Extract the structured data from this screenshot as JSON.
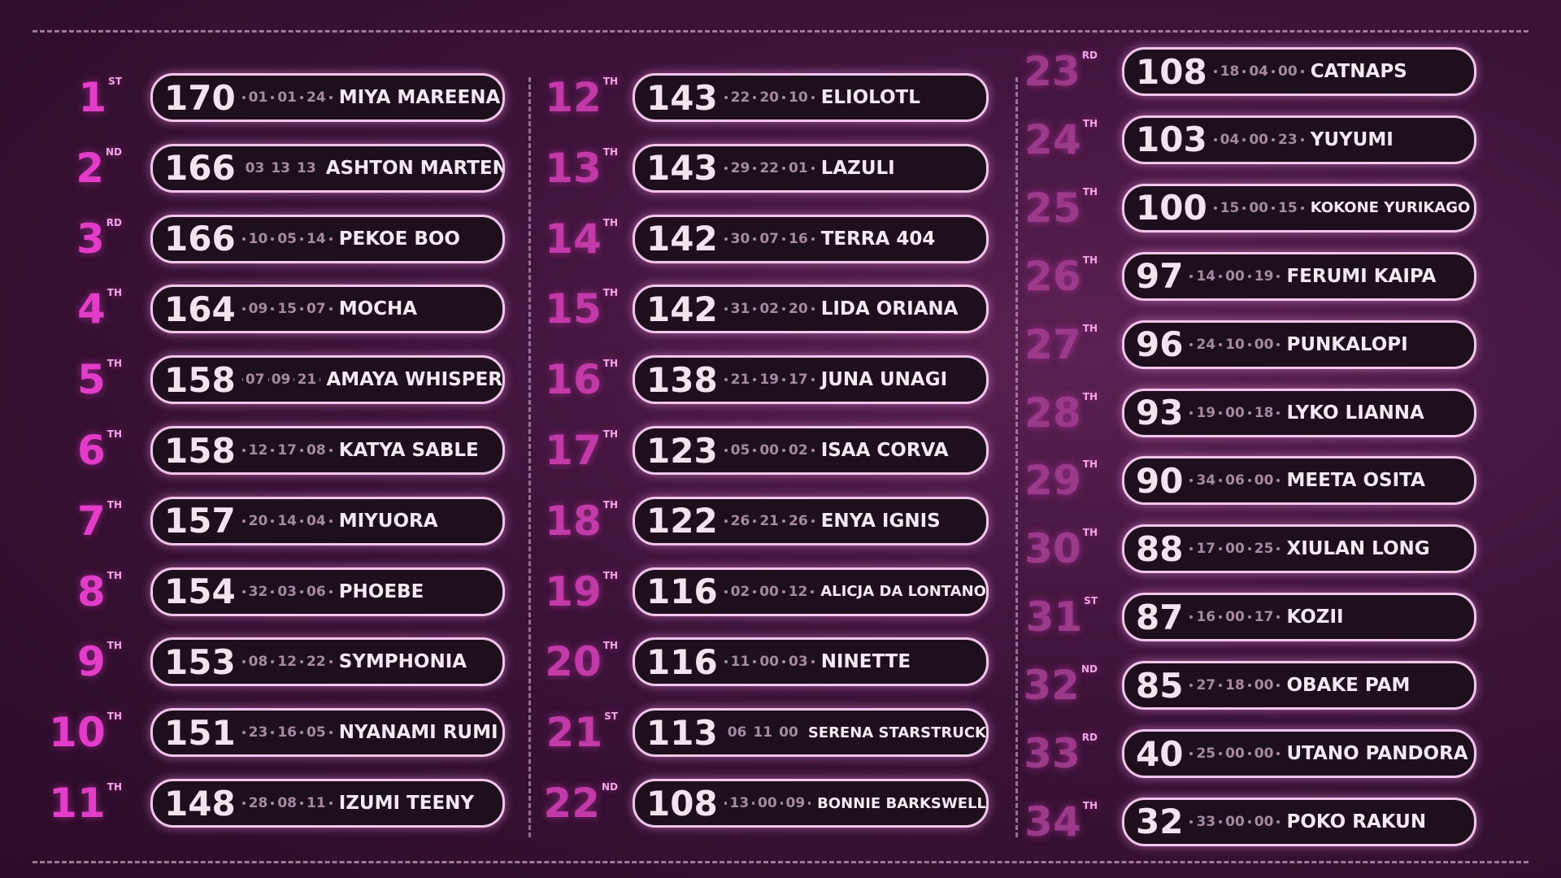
{
  "rankings": [
    {
      "rank": "1",
      "suffix": "ST",
      "score": "170",
      "stats": [
        "01",
        "01",
        "24"
      ],
      "name": "MIYA MAREENA"
    },
    {
      "rank": "2",
      "suffix": "ND",
      "score": "166",
      "stats": [
        "03",
        "13",
        "13"
      ],
      "name": "ASHTON MARTEN"
    },
    {
      "rank": "3",
      "suffix": "RD",
      "score": "166",
      "stats": [
        "10",
        "05",
        "14"
      ],
      "name": "PEKOE BOO"
    },
    {
      "rank": "4",
      "suffix": "TH",
      "score": "164",
      "stats": [
        "09",
        "15",
        "07"
      ],
      "name": "MOCHA"
    },
    {
      "rank": "5",
      "suffix": "TH",
      "score": "158",
      "stats": [
        "07",
        "09",
        "21"
      ],
      "name": "AMAYA WHISPER"
    },
    {
      "rank": "6",
      "suffix": "TH",
      "score": "158",
      "stats": [
        "12",
        "17",
        "08"
      ],
      "name": "KATYA SABLE"
    },
    {
      "rank": "7",
      "suffix": "TH",
      "score": "157",
      "stats": [
        "20",
        "14",
        "04"
      ],
      "name": "MIYUORA"
    },
    {
      "rank": "8",
      "suffix": "TH",
      "score": "154",
      "stats": [
        "32",
        "03",
        "06"
      ],
      "name": "PHOEBE"
    },
    {
      "rank": "9",
      "suffix": "TH",
      "score": "153",
      "stats": [
        "08",
        "12",
        "22"
      ],
      "name": "SYMPHONIA"
    },
    {
      "rank": "10",
      "suffix": "TH",
      "score": "151",
      "stats": [
        "23",
        "16",
        "05"
      ],
      "name": "NYANAMI RUMI"
    },
    {
      "rank": "11",
      "suffix": "TH",
      "score": "148",
      "stats": [
        "28",
        "08",
        "11"
      ],
      "name": "IZUMI TEENY"
    },
    {
      "rank": "12",
      "suffix": "TH",
      "score": "143",
      "stats": [
        "22",
        "20",
        "10"
      ],
      "name": "ELIOLOTL"
    },
    {
      "rank": "13",
      "suffix": "TH",
      "score": "143",
      "stats": [
        "29",
        "22",
        "01"
      ],
      "name": "LAZULI"
    },
    {
      "rank": "14",
      "suffix": "TH",
      "score": "142",
      "stats": [
        "30",
        "07",
        "16"
      ],
      "name": "TERRA 404"
    },
    {
      "rank": "15",
      "suffix": "TH",
      "score": "142",
      "stats": [
        "31",
        "02",
        "20"
      ],
      "name": "LIDA ORIANA"
    },
    {
      "rank": "16",
      "suffix": "TH",
      "score": "138",
      "stats": [
        "21",
        "19",
        "17"
      ],
      "name": "JUNA UNAGI"
    },
    {
      "rank": "17",
      "suffix": "TH",
      "score": "123",
      "stats": [
        "05",
        "00",
        "02"
      ],
      "name": "ISAA CORVA"
    },
    {
      "rank": "18",
      "suffix": "TH",
      "score": "122",
      "stats": [
        "26",
        "21",
        "26"
      ],
      "name": "ENYA IGNIS"
    },
    {
      "rank": "19",
      "suffix": "TH",
      "score": "116",
      "stats": [
        "02",
        "00",
        "12"
      ],
      "name": "ALICJA DA LONTANO"
    },
    {
      "rank": "20",
      "suffix": "TH",
      "score": "116",
      "stats": [
        "11",
        "00",
        "03"
      ],
      "name": "NINETTE"
    },
    {
      "rank": "21",
      "suffix": "ST",
      "score": "113",
      "stats": [
        "06",
        "11",
        "00"
      ],
      "name": "SERENA STARSTRUCK"
    },
    {
      "rank": "22",
      "suffix": "ND",
      "score": "108",
      "stats": [
        "13",
        "00",
        "09"
      ],
      "name": "BONNIE BARKSWELL"
    },
    {
      "rank": "23",
      "suffix": "RD",
      "score": "108",
      "stats": [
        "18",
        "04",
        "00"
      ],
      "name": "CATNAPS"
    },
    {
      "rank": "24",
      "suffix": "TH",
      "score": "103",
      "stats": [
        "04",
        "00",
        "23"
      ],
      "name": "YUYUMI"
    },
    {
      "rank": "25",
      "suffix": "TH",
      "score": "100",
      "stats": [
        "15",
        "00",
        "15"
      ],
      "name": "KOKONE YURIKAGO"
    },
    {
      "rank": "26",
      "suffix": "TH",
      "score": "97",
      "stats": [
        "14",
        "00",
        "19"
      ],
      "name": "FERUMI KAIPA"
    },
    {
      "rank": "27",
      "suffix": "TH",
      "score": "96",
      "stats": [
        "24",
        "10",
        "00"
      ],
      "name": "PUNKALOPI"
    },
    {
      "rank": "28",
      "suffix": "TH",
      "score": "93",
      "stats": [
        "19",
        "00",
        "18"
      ],
      "name": "LYKO LIANNA"
    },
    {
      "rank": "29",
      "suffix": "TH",
      "score": "90",
      "stats": [
        "34",
        "06",
        "00"
      ],
      "name": "MEETA OSITA"
    },
    {
      "rank": "30",
      "suffix": "TH",
      "score": "88",
      "stats": [
        "17",
        "00",
        "25"
      ],
      "name": "XIULAN LONG"
    },
    {
      "rank": "31",
      "suffix": "ST",
      "score": "87",
      "stats": [
        "16",
        "00",
        "17"
      ],
      "name": "KOZII"
    },
    {
      "rank": "32",
      "suffix": "ND",
      "score": "85",
      "stats": [
        "27",
        "18",
        "00"
      ],
      "name": "OBAKE PAM"
    },
    {
      "rank": "33",
      "suffix": "RD",
      "score": "40",
      "stats": [
        "25",
        "00",
        "00"
      ],
      "name": "UTANO PANDORA"
    },
    {
      "rank": "34",
      "suffix": "TH",
      "score": "32",
      "stats": [
        "33",
        "00",
        "00"
      ],
      "name": "POKO RAKUN"
    }
  ]
}
